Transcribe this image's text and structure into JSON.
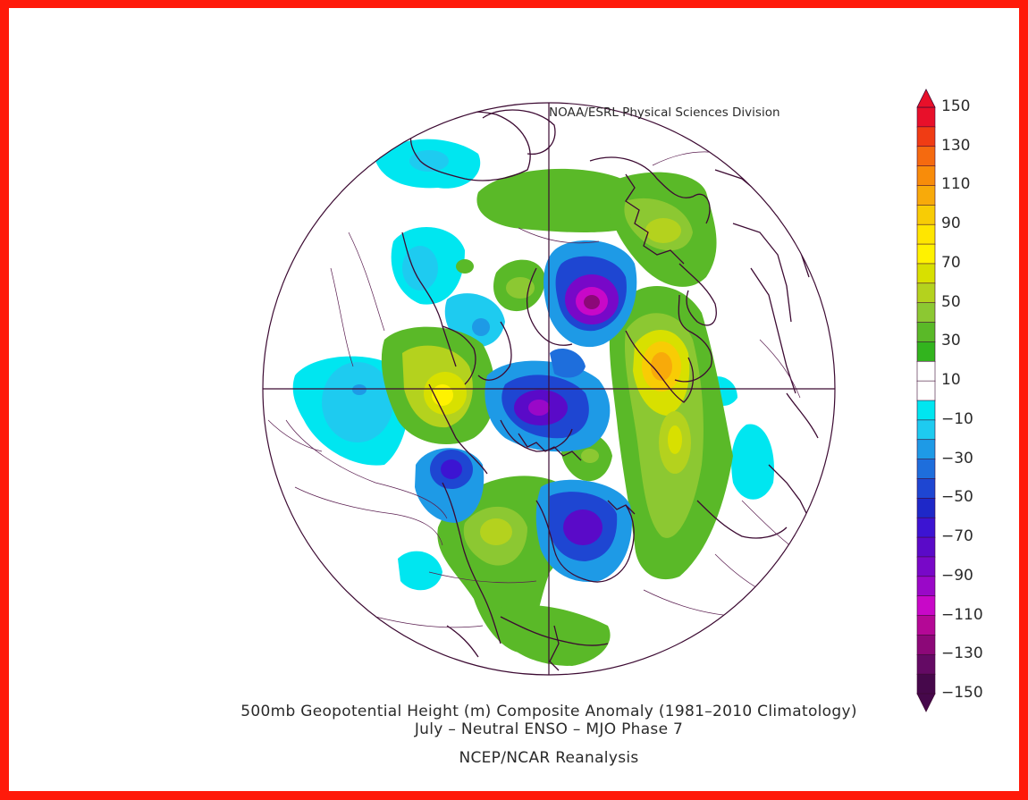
{
  "header": {
    "credit": "NOAA/ESRL Physical Sciences Division"
  },
  "footer": {
    "title": "500mb Geopotential Height (m) Composite Anomaly (1981–2010 Climatology)",
    "subtitle": "July – Neutral ENSO – MJO Phase 7",
    "source": "NCEP/NCAR Reanalysis"
  },
  "colorbar": {
    "labels": [
      "150",
      "130",
      "110",
      "90",
      "70",
      "50",
      "30",
      "10",
      "−10",
      "−30",
      "−50",
      "−70",
      "−90",
      "−110",
      "−130",
      "−150"
    ],
    "colors": [
      "#e8102a",
      "#f03c14",
      "#f56a0f",
      "#f88c0a",
      "#f8aa0a",
      "#f8cc05",
      "#ffe600",
      "#fff200",
      "#d8e000",
      "#b4d21e",
      "#8cc832",
      "#5ab928",
      "#32b41e",
      "#ffffff",
      "#ffffff",
      "#00e6f0",
      "#1ecbf0",
      "#1e9ae6",
      "#1e6edc",
      "#1e46d2",
      "#1e28c8",
      "#3c14d2",
      "#5a0ac8",
      "#7808c8",
      "#9a08c8",
      "#c808c8",
      "#b40896",
      "#8c0878",
      "#640a64",
      "#46084b"
    ]
  },
  "map": {
    "projection": "north-polar-stereographic",
    "landColor": "#3c0a32"
  }
}
